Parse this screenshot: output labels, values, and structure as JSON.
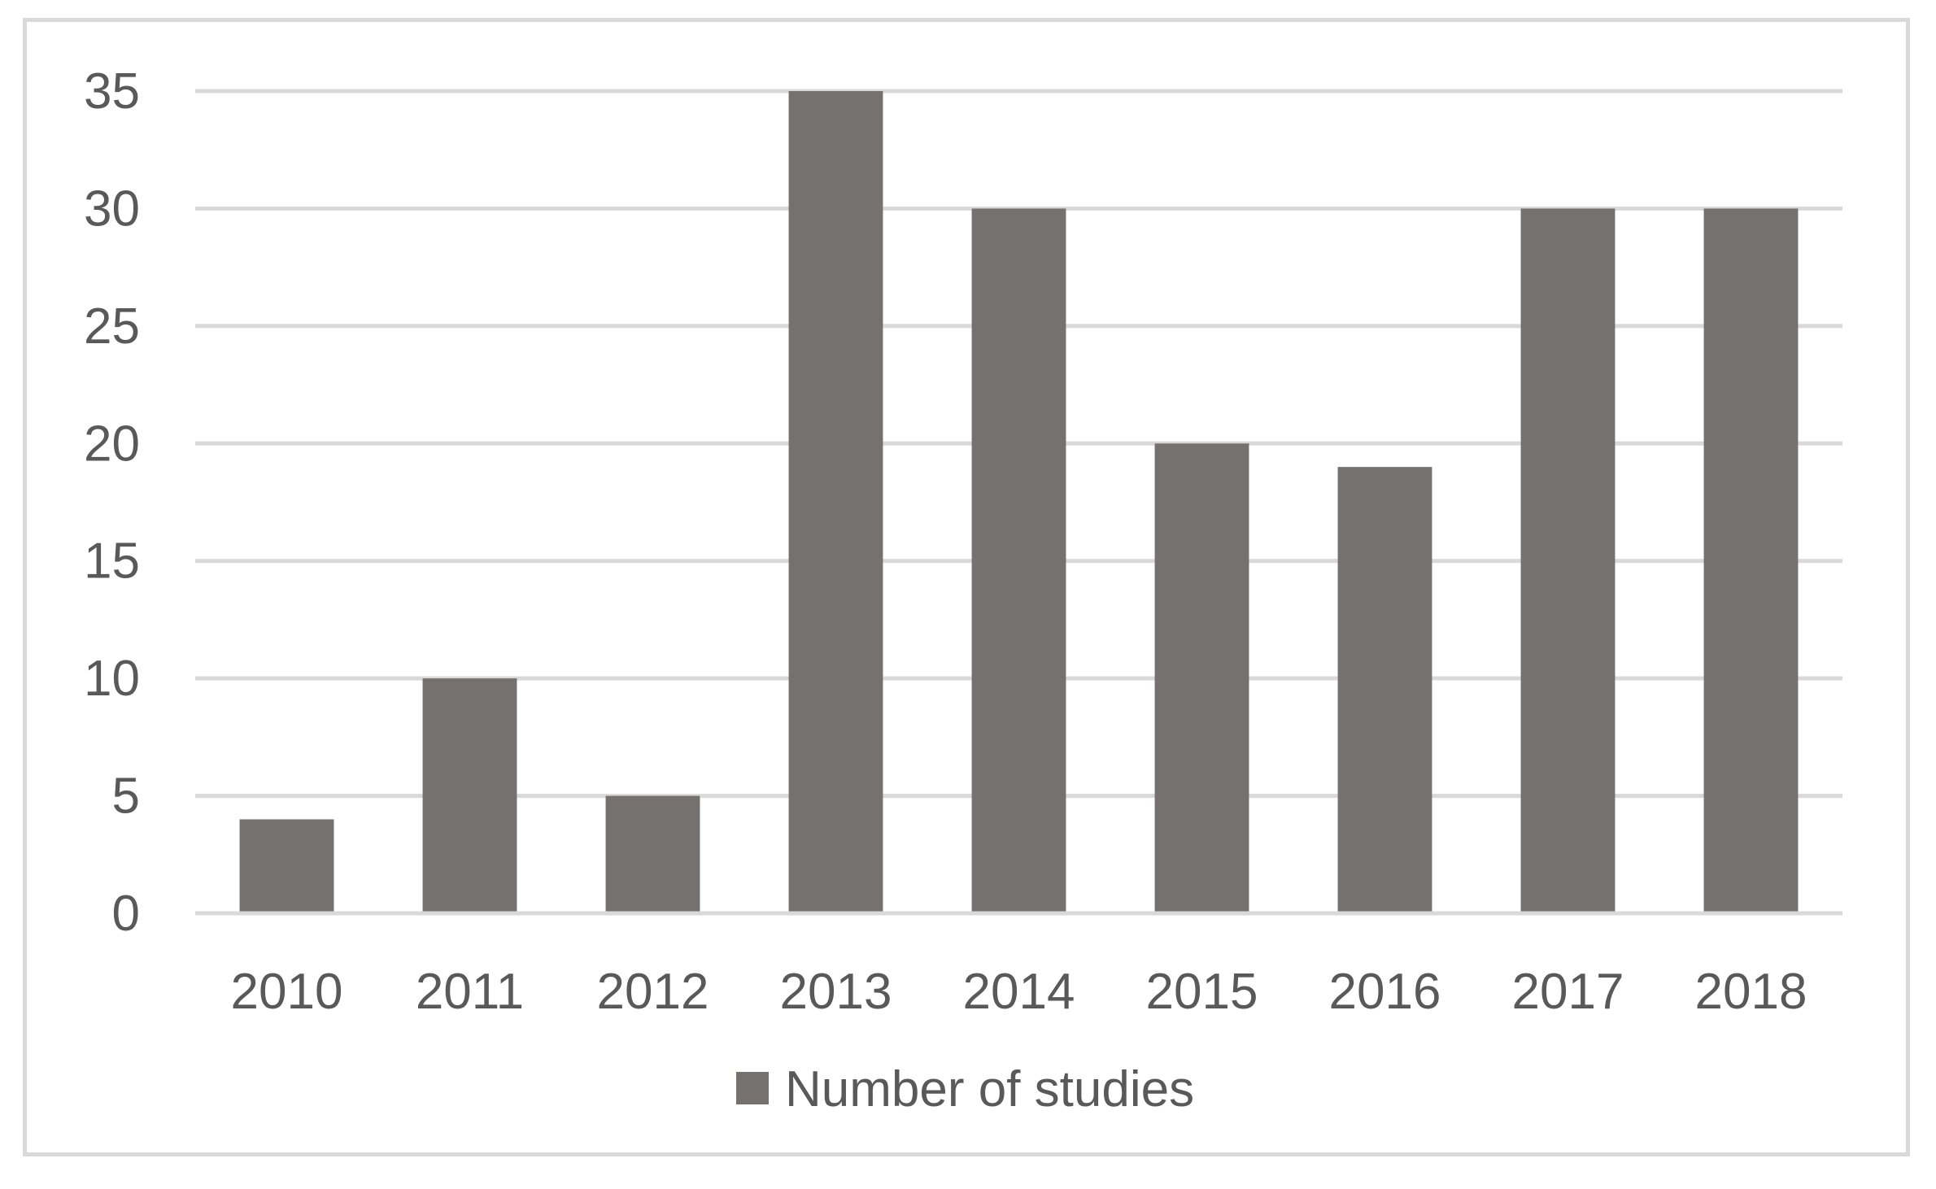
{
  "chart_data": {
    "type": "bar",
    "categories": [
      "2010",
      "2011",
      "2012",
      "2013",
      "2014",
      "2015",
      "2016",
      "2017",
      "2018"
    ],
    "series": [
      {
        "name": "Number of studies",
        "values": [
          4,
          10,
          5,
          35,
          30,
          20,
          19,
          30,
          30
        ],
        "color": "#757171"
      }
    ],
    "ylim": [
      0,
      35
    ],
    "yticks": [
      0,
      5,
      10,
      15,
      20,
      25,
      30,
      35
    ],
    "grid": true,
    "gridColor": "#d9d9d9",
    "legend": "bottom-center",
    "title": "",
    "xlabel": "",
    "ylabel": ""
  }
}
